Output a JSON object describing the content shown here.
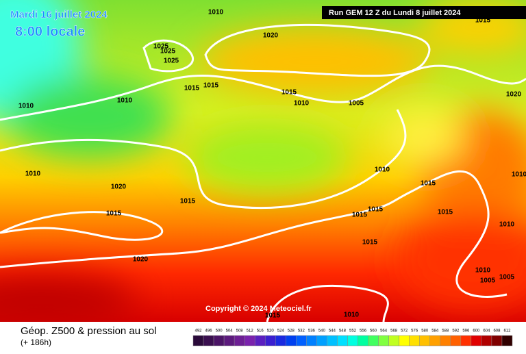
{
  "header": {
    "date": "Mardi 16 juillet 2024",
    "time": "8:00 locale",
    "run": "Run GEM 12 Z du Lundi 8 juillet 2024"
  },
  "map": {
    "copyright": "Copyright © 2024 Meteociel.fr",
    "isobar_labels": [
      "1010",
      "1020",
      "1025",
      "1025",
      "1025",
      "1015",
      "1015",
      "1015",
      "1010",
      "1010",
      "1010",
      "1005",
      "1020",
      "1010",
      "1020",
      "1010",
      "1015",
      "1015",
      "1015",
      "1015",
      "1015",
      "1015",
      "1010",
      "1015",
      "1020",
      "1010",
      "1005",
      "1005",
      "1015",
      "1010",
      "1015",
      "1010"
    ]
  },
  "footer": {
    "title": "Géop. Z500 & pression au sol",
    "lead": "(+ 186h)"
  },
  "legend": {
    "ticks": [
      492,
      496,
      500,
      504,
      508,
      512,
      516,
      520,
      524,
      528,
      532,
      536,
      540,
      544,
      548,
      552,
      556,
      560,
      564,
      568,
      572,
      576,
      580,
      584,
      588,
      592,
      596,
      600,
      604,
      608,
      612
    ],
    "colors": [
      "#2a0a3a",
      "#3a0f4f",
      "#4b1466",
      "#5c1a7d",
      "#6d1f94",
      "#7a22ad",
      "#5a1fc0",
      "#3a1fd0",
      "#1a2ae0",
      "#0040f0",
      "#0060ff",
      "#0080ff",
      "#00a0ff",
      "#00c0ff",
      "#00e0ff",
      "#00ffe0",
      "#00ffa0",
      "#40ff60",
      "#80ff40",
      "#c0ff20",
      "#ffff00",
      "#ffe000",
      "#ffc000",
      "#ffa000",
      "#ff8000",
      "#ff6000",
      "#ff3000",
      "#e00000",
      "#b00000",
      "#800000",
      "#300000"
    ]
  }
}
